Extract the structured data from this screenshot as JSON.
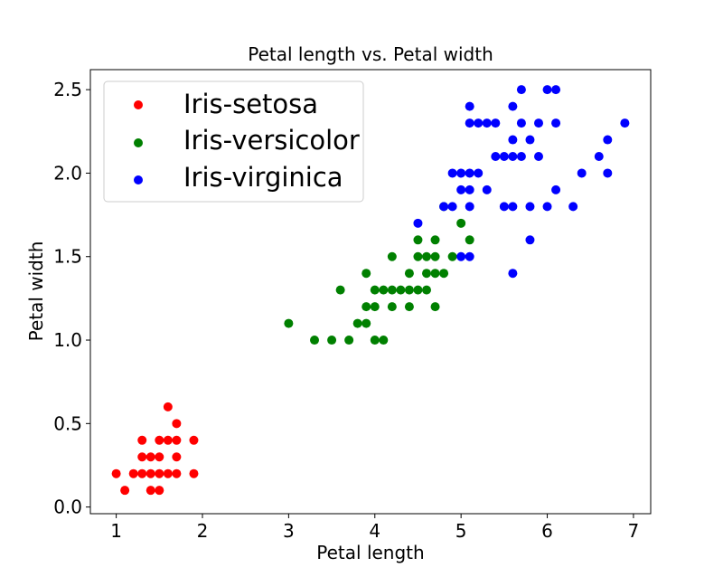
{
  "chart_data": {
    "type": "scatter",
    "title": "Petal length vs. Petal width",
    "xlabel": "Petal length",
    "ylabel": "Petal width",
    "xlim": [
      0.7,
      7.2
    ],
    "ylim": [
      -0.04,
      2.62
    ],
    "xticks": [
      1,
      2,
      3,
      4,
      5,
      6,
      7
    ],
    "xtick_labels": [
      "1",
      "2",
      "3",
      "4",
      "5",
      "6",
      "7"
    ],
    "yticks": [
      0.0,
      0.5,
      1.0,
      1.5,
      2.0,
      2.5
    ],
    "ytick_labels": [
      "0.0",
      "0.5",
      "1.0",
      "1.5",
      "2.0",
      "2.5"
    ],
    "grid": false,
    "legend_position": "upper-left",
    "series": [
      {
        "name": "Iris-setosa",
        "color": "#ff0000",
        "points": [
          [
            1.0,
            0.2
          ],
          [
            1.1,
            0.1
          ],
          [
            1.2,
            0.2
          ],
          [
            1.3,
            0.2
          ],
          [
            1.3,
            0.3
          ],
          [
            1.3,
            0.4
          ],
          [
            1.4,
            0.1
          ],
          [
            1.4,
            0.2
          ],
          [
            1.4,
            0.3
          ],
          [
            1.5,
            0.1
          ],
          [
            1.5,
            0.2
          ],
          [
            1.5,
            0.3
          ],
          [
            1.5,
            0.4
          ],
          [
            1.6,
            0.2
          ],
          [
            1.6,
            0.4
          ],
          [
            1.6,
            0.6
          ],
          [
            1.7,
            0.2
          ],
          [
            1.7,
            0.3
          ],
          [
            1.7,
            0.4
          ],
          [
            1.7,
            0.5
          ],
          [
            1.9,
            0.2
          ],
          [
            1.9,
            0.4
          ]
        ]
      },
      {
        "name": "Iris-versicolor",
        "color": "#008000",
        "points": [
          [
            3.0,
            1.1
          ],
          [
            3.3,
            1.0
          ],
          [
            3.5,
            1.0
          ],
          [
            3.6,
            1.3
          ],
          [
            3.7,
            1.0
          ],
          [
            3.8,
            1.1
          ],
          [
            3.9,
            1.1
          ],
          [
            3.9,
            1.2
          ],
          [
            3.9,
            1.4
          ],
          [
            4.0,
            1.0
          ],
          [
            4.0,
            1.2
          ],
          [
            4.0,
            1.3
          ],
          [
            4.1,
            1.0
          ],
          [
            4.1,
            1.3
          ],
          [
            4.2,
            1.2
          ],
          [
            4.2,
            1.3
          ],
          [
            4.2,
            1.5
          ],
          [
            4.3,
            1.3
          ],
          [
            4.4,
            1.2
          ],
          [
            4.4,
            1.3
          ],
          [
            4.4,
            1.4
          ],
          [
            4.5,
            1.3
          ],
          [
            4.5,
            1.5
          ],
          [
            4.5,
            1.6
          ],
          [
            4.6,
            1.3
          ],
          [
            4.6,
            1.4
          ],
          [
            4.6,
            1.5
          ],
          [
            4.7,
            1.2
          ],
          [
            4.7,
            1.4
          ],
          [
            4.7,
            1.5
          ],
          [
            4.7,
            1.6
          ],
          [
            4.8,
            1.4
          ],
          [
            4.8,
            1.8
          ],
          [
            4.9,
            1.5
          ],
          [
            5.0,
            1.7
          ],
          [
            5.1,
            1.6
          ]
        ]
      },
      {
        "name": "Iris-virginica",
        "color": "#0000ff",
        "points": [
          [
            4.5,
            1.7
          ],
          [
            4.8,
            1.8
          ],
          [
            4.9,
            1.8
          ],
          [
            4.9,
            2.0
          ],
          [
            5.0,
            1.5
          ],
          [
            5.0,
            1.9
          ],
          [
            5.0,
            2.0
          ],
          [
            5.1,
            1.5
          ],
          [
            5.1,
            1.8
          ],
          [
            5.1,
            1.9
          ],
          [
            5.1,
            2.0
          ],
          [
            5.1,
            2.3
          ],
          [
            5.1,
            2.4
          ],
          [
            5.2,
            2.0
          ],
          [
            5.2,
            2.3
          ],
          [
            5.3,
            1.9
          ],
          [
            5.3,
            2.3
          ],
          [
            5.4,
            2.1
          ],
          [
            5.4,
            2.3
          ],
          [
            5.5,
            1.8
          ],
          [
            5.5,
            2.1
          ],
          [
            5.6,
            1.4
          ],
          [
            5.6,
            1.8
          ],
          [
            5.6,
            2.1
          ],
          [
            5.6,
            2.2
          ],
          [
            5.6,
            2.4
          ],
          [
            5.7,
            2.1
          ],
          [
            5.7,
            2.3
          ],
          [
            5.7,
            2.5
          ],
          [
            5.8,
            1.6
          ],
          [
            5.8,
            1.8
          ],
          [
            5.8,
            2.2
          ],
          [
            5.9,
            2.1
          ],
          [
            5.9,
            2.3
          ],
          [
            6.0,
            1.8
          ],
          [
            6.0,
            2.5
          ],
          [
            6.1,
            1.9
          ],
          [
            6.1,
            2.3
          ],
          [
            6.1,
            2.5
          ],
          [
            6.3,
            1.8
          ],
          [
            6.4,
            2.0
          ],
          [
            6.6,
            2.1
          ],
          [
            6.7,
            2.0
          ],
          [
            6.7,
            2.2
          ],
          [
            6.9,
            2.3
          ]
        ]
      }
    ]
  }
}
